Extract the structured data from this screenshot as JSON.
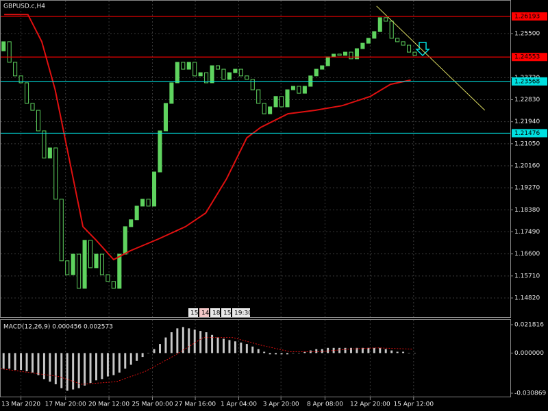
{
  "chart_data": {
    "type": "candlestick",
    "title": "GBPUSD.c,H4",
    "xlim": [
      0,
      88
    ],
    "xticks": [
      {
        "value": 3.5,
        "label": "13 Mar 2020"
      },
      {
        "value": 11.2,
        "label": "17 Mar 20:00"
      },
      {
        "value": 18.7,
        "label": "20 Mar 12:00"
      },
      {
        "value": 26.2,
        "label": "25 Mar 00:00"
      },
      {
        "value": 33.6,
        "label": "27 Mar 16:00"
      },
      {
        "value": 41.1,
        "label": "1 Apr 04:00"
      },
      {
        "value": 48.4,
        "label": "3 Apr 20:00"
      },
      {
        "value": 56,
        "label": "8 Apr 08:00"
      },
      {
        "value": 63.8,
        "label": "12 Apr 20:00"
      },
      {
        "value": 71.3,
        "label": "15 Apr 12:00"
      }
    ],
    "ylim": [
      1.14045,
      1.26828
    ],
    "yticks": [
      {
        "value": 1.255,
        "label": "1.25500"
      },
      {
        "value": 1.2372,
        "label": "1.23720"
      },
      {
        "value": 1.2283,
        "label": "1.22830"
      },
      {
        "value": 1.2194,
        "label": "1.21940"
      },
      {
        "value": 1.2105,
        "label": "1.21050"
      },
      {
        "value": 1.2016,
        "label": "1.20160"
      },
      {
        "value": 1.1927,
        "label": "1.19270"
      },
      {
        "value": 1.1838,
        "label": "1.18380"
      },
      {
        "value": 1.1749,
        "label": "1.17490"
      },
      {
        "value": 1.166,
        "label": "1.16600"
      },
      {
        "value": 1.1571,
        "label": "1.15710"
      },
      {
        "value": 1.1482,
        "label": "1.14820"
      }
    ],
    "grid": true,
    "candles": {
      "color": "#5fd35f",
      "open": [
        1.248,
        1.2517,
        1.2434,
        1.2379,
        1.2351,
        1.2268,
        1.224,
        1.2157,
        1.2047,
        1.2088,
        1.1881,
        1.1632,
        1.1576,
        1.1659,
        1.1521,
        1.1715,
        1.1604,
        1.1659,
        1.1576,
        1.1549,
        1.1521,
        1.1659,
        1.177,
        1.1798,
        1.1853,
        1.1881,
        1.1853,
        1.1991,
        1.2157,
        1.2268,
        1.2351,
        1.2434,
        1.2406,
        1.2434,
        1.2379,
        1.2392,
        1.2351,
        1.242,
        1.2406,
        1.2365,
        1.2392,
        1.2406,
        1.2379,
        1.2365,
        1.2323,
        1.2268,
        1.2226,
        1.2254,
        1.2296,
        1.2254,
        1.2323,
        1.2337,
        1.2309,
        1.2337,
        1.2379,
        1.2406,
        1.242,
        1.2456,
        1.2467,
        1.2462,
        1.2475,
        1.2448,
        1.2489,
        1.2511,
        1.2531,
        1.2558,
        1.2614,
        1.26,
        1.2531,
        1.2517,
        1.2503,
        1.2475
      ],
      "close": [
        1.2517,
        1.2434,
        1.2379,
        1.2351,
        1.2268,
        1.224,
        1.2157,
        1.2047,
        1.2088,
        1.1881,
        1.1632,
        1.1576,
        1.1659,
        1.1521,
        1.1715,
        1.1604,
        1.1659,
        1.1576,
        1.1549,
        1.1521,
        1.1659,
        1.177,
        1.1798,
        1.1853,
        1.1881,
        1.1853,
        1.1991,
        1.2157,
        1.2268,
        1.2351,
        1.2434,
        1.2406,
        1.2434,
        1.2379,
        1.2392,
        1.2351,
        1.242,
        1.2406,
        1.2365,
        1.2392,
        1.2406,
        1.2379,
        1.2365,
        1.2323,
        1.2268,
        1.2226,
        1.2254,
        1.2296,
        1.2254,
        1.2323,
        1.2337,
        1.2309,
        1.2337,
        1.2379,
        1.2406,
        1.242,
        1.2456,
        1.2467,
        1.2462,
        1.2475,
        1.2448,
        1.2489,
        1.2511,
        1.2531,
        1.2558,
        1.2614,
        1.26,
        1.2531,
        1.2517,
        1.2503,
        1.2475,
        1.2462
      ]
    },
    "ma": {
      "color": "#e01010",
      "x": [
        0.6,
        4.7,
        7.1,
        9.4,
        11.8,
        14.2,
        16.5,
        19.5,
        22.4,
        27.2,
        31.9,
        35.4,
        39,
        42.5,
        44.9,
        49.6,
        54.3,
        59,
        63.8,
        67.3,
        70.8
      ],
      "values": [
        1.2627,
        1.2627,
        1.2517,
        1.2323,
        1.2047,
        1.177,
        1.1715,
        1.1637,
        1.1673,
        1.172,
        1.177,
        1.1825,
        1.1963,
        1.2129,
        1.2171,
        1.2226,
        1.224,
        1.2259,
        1.2296,
        1.2345,
        1.2362
      ]
    },
    "trendline": {
      "color": "#d8d860",
      "x": [
        64.9,
        83.6
      ],
      "values": [
        1.2661,
        1.224
      ]
    },
    "levels": [
      {
        "value": 1.26193,
        "label": "1.26193",
        "color": "#ff0000"
      },
      {
        "value": 1.24553,
        "label": "1.24553",
        "color": "#ff0000"
      },
      {
        "value": 1.23568,
        "label": "1.23568",
        "color": "#00e0e0"
      },
      {
        "value": 1.21476,
        "label": "1.21476",
        "color": "#00e0e0"
      }
    ],
    "time_chips": [
      "15",
      "14",
      "18",
      "15",
      "19:30"
    ],
    "macd": {
      "label": "MACD(12,26,9) 0.000456 0.002573",
      "ylim": [
        -0.0335,
        0.0255
      ],
      "yticks": [
        {
          "value": 0.021816,
          "label": "0.021816"
        },
        {
          "value": 0,
          "label": "0.000000"
        },
        {
          "value": -0.030869,
          "label": "-0.030869"
        }
      ],
      "histogram": {
        "color": "#c8c8c8",
        "values": [
          -0.012,
          -0.012,
          -0.013,
          -0.013,
          -0.014,
          -0.015,
          -0.017,
          -0.02,
          -0.022,
          -0.024,
          -0.027,
          -0.029,
          -0.028,
          -0.027,
          -0.025,
          -0.023,
          -0.021,
          -0.02,
          -0.018,
          -0.017,
          -0.015,
          -0.012,
          -0.009,
          -0.006,
          -0.003,
          0,
          0.003,
          0.007,
          0.012,
          0.016,
          0.019,
          0.02,
          0.019,
          0.018,
          0.017,
          0.016,
          0.014,
          0.012,
          0.011,
          0.01,
          0.009,
          0.008,
          0.007,
          0.005,
          0.003,
          0.001,
          -0.001,
          -0.001,
          -0.001,
          -0.001,
          0,
          0,
          0.001,
          0.002,
          0.003,
          0.003,
          0.004,
          0.004,
          0.004,
          0.004,
          0.004,
          0.004,
          0.004,
          0.004,
          0.004,
          0.004,
          0.003,
          0.002,
          0.001,
          0.001,
          0,
          0
        ]
      },
      "signal": {
        "color": "#e01010",
        "x": [
          0,
          10,
          14,
          20,
          25,
          30,
          35,
          40,
          45,
          50,
          55,
          60,
          65,
          71
        ],
        "values": [
          -0.012,
          -0.018,
          -0.024,
          -0.022,
          -0.014,
          -0.002,
          0.012,
          0.012,
          0.006,
          0.001,
          0.001,
          0.003,
          0.004,
          0.003
        ]
      }
    }
  }
}
